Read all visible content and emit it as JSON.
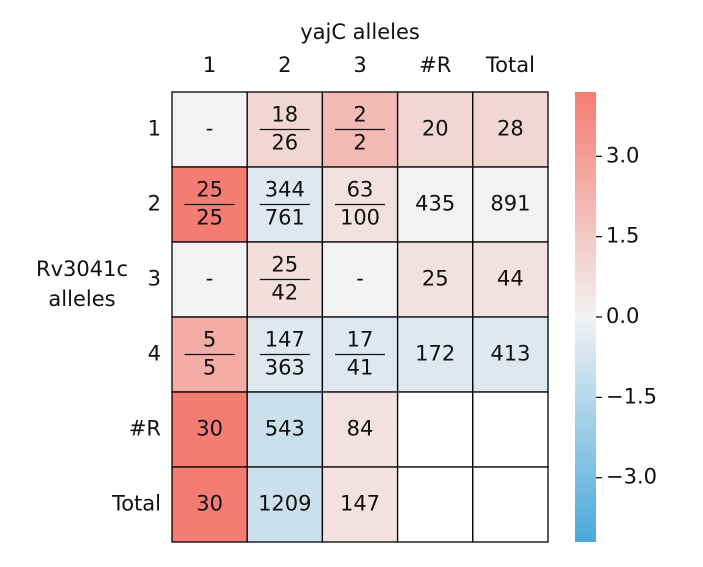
{
  "chart_data": {
    "type": "heatmap",
    "title": "yajC alleles",
    "ylabel": [
      "Rv3041c",
      "alleles"
    ],
    "columns": [
      "1",
      "2",
      "3",
      "#R",
      "Total"
    ],
    "rows": [
      "1",
      "2",
      "3",
      "4",
      "#R",
      "Total"
    ],
    "cells": [
      [
        "-",
        [
          "18",
          "26"
        ],
        [
          "2",
          "2"
        ],
        "20",
        "28"
      ],
      [
        [
          "25",
          "25"
        ],
        [
          "344",
          "761"
        ],
        [
          "63",
          "100"
        ],
        "435",
        "891"
      ],
      [
        "-",
        [
          "25",
          "42"
        ],
        "-",
        "25",
        "44"
      ],
      [
        [
          "5",
          "5"
        ],
        [
          "147",
          "363"
        ],
        [
          "17",
          "41"
        ],
        "172",
        "413"
      ],
      [
        "30",
        "543",
        "84",
        null,
        null
      ],
      [
        "30",
        "1209",
        "147",
        null,
        null
      ]
    ],
    "values": [
      [
        0,
        1.0,
        2.0,
        1.0,
        1.0
      ],
      [
        4.2,
        -0.5,
        0.6,
        0,
        0
      ],
      [
        0,
        0.7,
        0,
        0.6,
        0.6
      ],
      [
        2.5,
        -0.5,
        -0.5,
        -0.5,
        -0.5
      ],
      [
        4.2,
        -1.0,
        0.6,
        null,
        null
      ],
      [
        4.2,
        -1.0,
        0.6,
        null,
        null
      ]
    ],
    "cmap": [
      "#4aa8dc",
      "#f2f2f2",
      "#f47c72"
    ],
    "clim": [
      -4.2,
      4.2
    ],
    "cticks": [
      {
        "value": 3,
        "label": "3.0"
      },
      {
        "value": 1.5,
        "label": "1.5"
      },
      {
        "value": 0,
        "label": "0.0"
      },
      {
        "value": -1.5,
        "label": "−1.5"
      },
      {
        "value": -3,
        "label": "−3.0"
      }
    ]
  }
}
